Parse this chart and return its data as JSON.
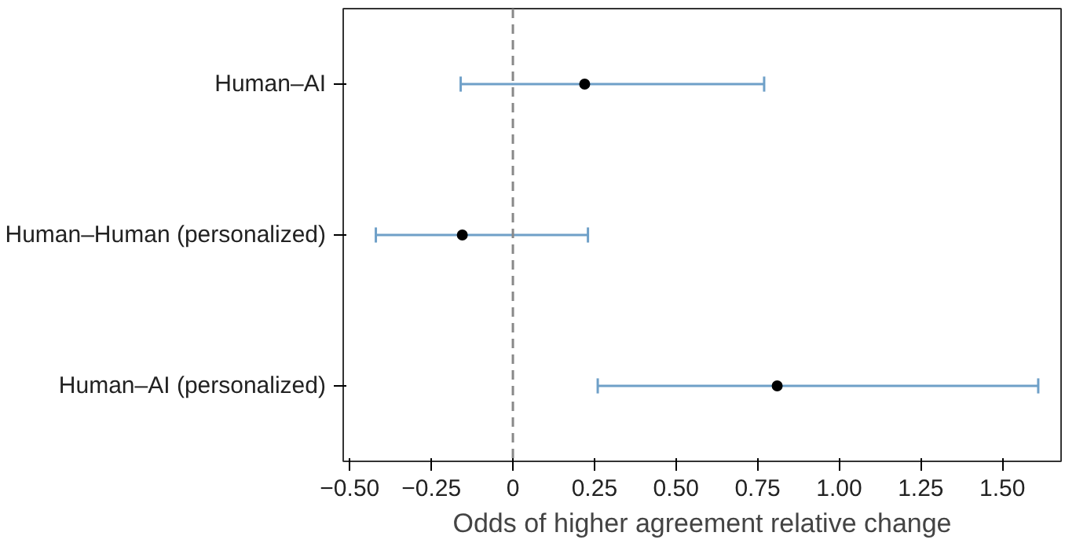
{
  "chart_data": {
    "type": "scatter",
    "orientation": "horizontal",
    "xlabel": "Odds of higher agreement relative change",
    "categories": [
      "Human–AI",
      "Human–Human (personalized)",
      "Human–AI (personalized)"
    ],
    "values": [
      0.22,
      -0.155,
      0.81
    ],
    "errors": [
      [
        -0.16,
        0.77
      ],
      [
        -0.42,
        0.23
      ],
      [
        0.26,
        1.61
      ]
    ],
    "color": "#000000",
    "xlim": [
      -0.52,
      1.68
    ],
    "xticks": [
      {
        "value": -0.5,
        "label": "−0.50"
      },
      {
        "value": -0.25,
        "label": "−0.25"
      },
      0,
      {
        "value": 0.25,
        "label": "0.25"
      },
      {
        "value": 0.5,
        "label": "0.50"
      },
      {
        "value": 0.75,
        "label": "0.75"
      },
      {
        "value": 1.0,
        "label": "1.00"
      },
      {
        "value": 1.25,
        "label": "1.25"
      },
      {
        "value": 1.5,
        "label": "1.50"
      }
    ],
    "ref_lines": [
      {
        "axis": "x",
        "value": 0,
        "color": "#888888",
        "line_style": "dashed"
      }
    ],
    "marker": "circle"
  }
}
